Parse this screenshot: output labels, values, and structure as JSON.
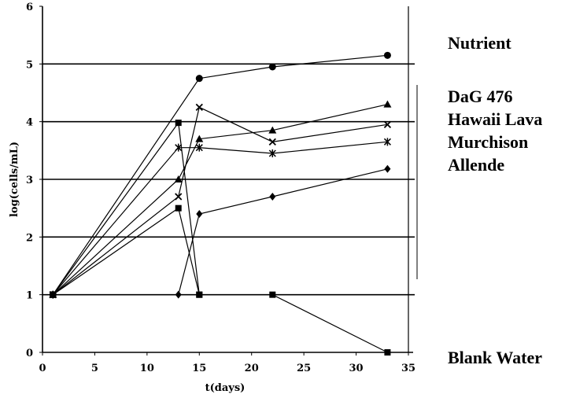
{
  "chart_data": {
    "type": "line",
    "xlabel": "t(days)",
    "ylabel": "log(cells/mL)",
    "xlim": [
      0,
      35
    ],
    "ylim": [
      0,
      6
    ],
    "xticks": [
      "0",
      "5",
      "10",
      "15",
      "20",
      "25",
      "30",
      "35"
    ],
    "yticks": [
      "0",
      "1",
      "2",
      "3",
      "4",
      "5",
      "6"
    ],
    "grid": "horizontal",
    "legend": {
      "placement": "right",
      "labels": [
        "Nutrient",
        "DaG 476",
        "Hawaii Lava",
        "Murchison",
        "Allende",
        "Blank Water"
      ]
    },
    "series": [
      {
        "marker": "circle",
        "x": [
          1,
          15,
          22,
          33
        ],
        "y": [
          1,
          4.75,
          4.95,
          5.15
        ]
      },
      {
        "marker": "square",
        "x": [
          1,
          13,
          15,
          22,
          33
        ],
        "y": [
          1,
          3.98,
          1,
          1,
          0
        ]
      },
      {
        "marker": "square",
        "x": [
          1,
          13,
          15
        ],
        "y": [
          1,
          2.5,
          1
        ]
      },
      {
        "marker": "triangle",
        "x": [
          1,
          13,
          15,
          22,
          33
        ],
        "y": [
          1,
          3,
          3.7,
          3.85,
          4.3
        ]
      },
      {
        "marker": "x",
        "x": [
          1,
          13,
          15,
          22,
          33
        ],
        "y": [
          1,
          2.7,
          4.25,
          3.65,
          3.95
        ]
      },
      {
        "marker": "star",
        "x": [
          1,
          13,
          15,
          22,
          33
        ],
        "y": [
          1,
          3.55,
          3.55,
          3.45,
          3.65
        ]
      },
      {
        "marker": "diamond",
        "x": [
          1,
          13,
          15,
          22,
          33
        ],
        "y": [
          1,
          1,
          2.4,
          2.7,
          3.18
        ]
      }
    ]
  }
}
